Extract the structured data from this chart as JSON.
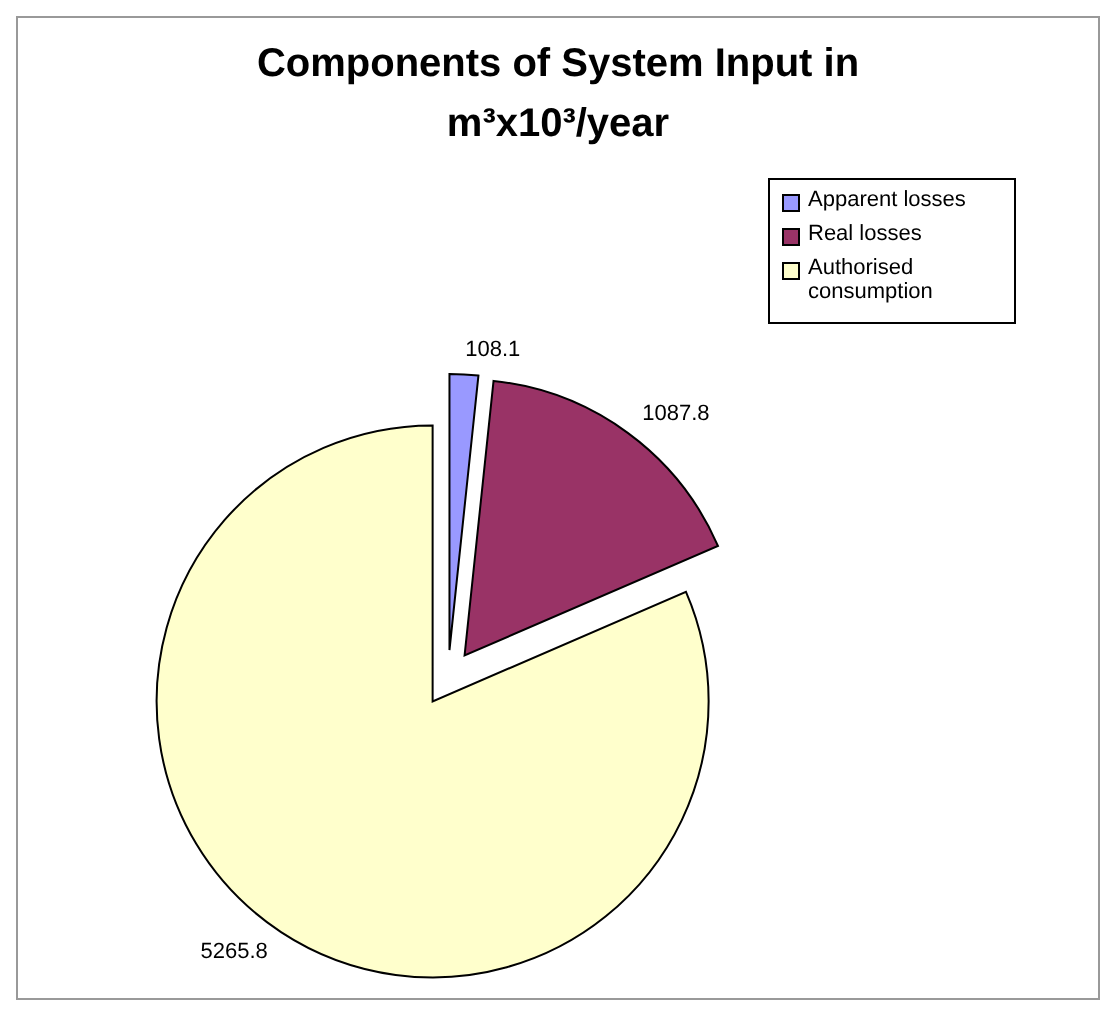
{
  "chart_data": {
    "type": "pie",
    "title": "Components of System Input in m³x10³/year",
    "categories": [
      "Apparent losses",
      "Real losses",
      "Authorised consumption"
    ],
    "values": [
      108.1,
      1087.8,
      5265.8
    ],
    "colors": [
      "#9999ff",
      "#993366",
      "#ffffcc"
    ],
    "data_labels": true,
    "legend": "right"
  }
}
